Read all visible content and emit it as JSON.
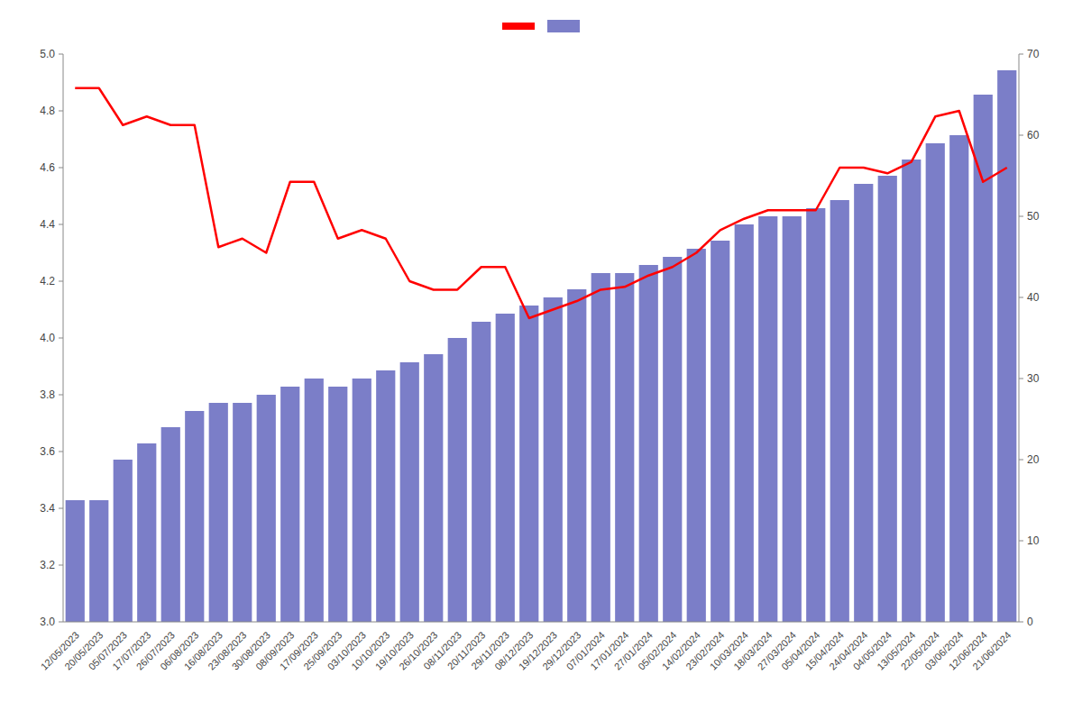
{
  "chart_data": {
    "type": "bar",
    "categories": [
      "12/05/2023",
      "20/05/2023",
      "05/07/2023",
      "17/07/2023",
      "26/07/2023",
      "06/08/2023",
      "16/08/2023",
      "23/08/2023",
      "30/08/2023",
      "08/09/2023",
      "17/09/2023",
      "25/09/2023",
      "03/10/2023",
      "10/10/2023",
      "19/10/2023",
      "26/10/2023",
      "08/11/2023",
      "20/11/2023",
      "29/11/2023",
      "08/12/2023",
      "19/12/2023",
      "29/12/2023",
      "07/01/2024",
      "17/01/2024",
      "27/01/2024",
      "05/02/2024",
      "14/02/2024",
      "23/02/2024",
      "10/03/2024",
      "18/03/2024",
      "27/03/2024",
      "05/04/2024",
      "15/04/2024",
      "24/04/2024",
      "04/05/2024",
      "13/05/2024",
      "22/05/2024",
      "03/06/2024",
      "12/06/2024",
      "21/06/2024"
    ],
    "series": [
      {
        "type": "line",
        "color": "#ff0000",
        "values": [
          4.88,
          4.88,
          4.75,
          4.78,
          4.75,
          4.75,
          4.32,
          4.35,
          4.3,
          4.55,
          4.55,
          4.35,
          4.38,
          4.35,
          4.2,
          4.17,
          4.17,
          4.25,
          4.25,
          4.07,
          4.1,
          4.13,
          4.17,
          4.18,
          4.22,
          4.25,
          4.3,
          4.38,
          4.42,
          4.45,
          4.45,
          4.45,
          4.6,
          4.6,
          4.58,
          4.62,
          4.78,
          4.8,
          4.55,
          4.6
        ]
      },
      {
        "type": "bar",
        "color": "#7b7ec8",
        "axis": "y2",
        "values": [
          15,
          15,
          20,
          22,
          24,
          26,
          27,
          27,
          28,
          29,
          30,
          29,
          30,
          31,
          32,
          33,
          35,
          37,
          38,
          39,
          40,
          41,
          43,
          43,
          44,
          45,
          46,
          47,
          49,
          50,
          50,
          51,
          52,
          54,
          55,
          57,
          59,
          60,
          65,
          68
        ]
      }
    ],
    "ylim": [
      3.0,
      5.0
    ],
    "yticks": [
      {
        "value": 3.0,
        "label": "3.0"
      },
      3.2,
      3.4,
      3.6,
      3.8,
      {
        "value": 4.0,
        "label": "4.0"
      },
      4.2,
      4.4,
      4.6,
      4.8,
      {
        "value": 5.0,
        "label": "5.0"
      }
    ],
    "y2lim": [
      0,
      70
    ],
    "y2ticks": [
      0,
      10,
      20,
      30,
      40,
      50,
      60,
      70
    ],
    "grid": false,
    "legend": "top"
  }
}
